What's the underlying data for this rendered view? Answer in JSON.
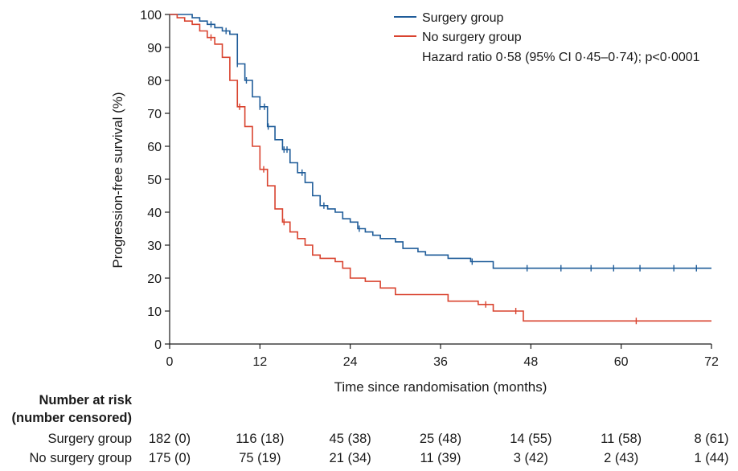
{
  "chart_data": {
    "type": "line",
    "xlabel": "Time since randomisation (months)",
    "ylabel": "Progression-free survival (%)",
    "xlim": [
      0,
      72
    ],
    "ylim": [
      0,
      100
    ],
    "x_ticks": [
      0,
      12,
      24,
      36,
      48,
      60,
      72
    ],
    "y_ticks": [
      0,
      10,
      20,
      30,
      40,
      50,
      60,
      70,
      80,
      90,
      100
    ],
    "grid": false,
    "legend_position": "top-right",
    "annotation": "Hazard ratio 0·58 (95% CI 0·45–0·74); p<0·0001",
    "series": [
      {
        "name": "Surgery group",
        "color": "#1f5c99",
        "step": true,
        "points": [
          [
            0,
            100
          ],
          [
            2,
            100
          ],
          [
            3,
            99
          ],
          [
            4,
            98
          ],
          [
            5,
            97
          ],
          [
            6,
            96
          ],
          [
            7,
            95
          ],
          [
            8,
            94
          ],
          [
            9,
            85
          ],
          [
            10,
            80
          ],
          [
            11,
            75
          ],
          [
            12,
            72
          ],
          [
            13,
            66
          ],
          [
            14,
            62
          ],
          [
            15,
            59
          ],
          [
            16,
            55
          ],
          [
            17,
            52
          ],
          [
            18,
            49
          ],
          [
            19,
            45
          ],
          [
            20,
            42
          ],
          [
            21,
            41
          ],
          [
            22,
            40
          ],
          [
            23,
            38
          ],
          [
            24,
            37
          ],
          [
            25,
            35
          ],
          [
            26,
            34
          ],
          [
            27,
            33
          ],
          [
            28,
            32
          ],
          [
            29,
            32
          ],
          [
            30,
            31
          ],
          [
            31,
            29
          ],
          [
            33,
            28
          ],
          [
            34,
            27
          ],
          [
            36,
            27
          ],
          [
            37,
            26
          ],
          [
            39,
            26
          ],
          [
            40,
            25
          ],
          [
            42,
            25
          ],
          [
            43,
            23
          ],
          [
            72,
            23
          ]
        ],
        "censor_x": [
          5.5,
          7.5,
          9,
          10.2,
          12,
          12.6,
          13.1,
          15.2,
          15.6,
          17.6,
          20.5,
          25.2,
          40.2,
          47.5,
          52,
          56,
          59,
          62.5,
          67,
          70
        ]
      },
      {
        "name": "No surgery group",
        "color": "#d9432f",
        "step": true,
        "points": [
          [
            0,
            100
          ],
          [
            1,
            99
          ],
          [
            2,
            98
          ],
          [
            3,
            97
          ],
          [
            4,
            95
          ],
          [
            5,
            93
          ],
          [
            6,
            91
          ],
          [
            7,
            87
          ],
          [
            8,
            80
          ],
          [
            9,
            72
          ],
          [
            10,
            66
          ],
          [
            11,
            60
          ],
          [
            12,
            53
          ],
          [
            13,
            48
          ],
          [
            14,
            41
          ],
          [
            15,
            37
          ],
          [
            16,
            34
          ],
          [
            17,
            32
          ],
          [
            18,
            30
          ],
          [
            19,
            27
          ],
          [
            20,
            26
          ],
          [
            22,
            25
          ],
          [
            23,
            23
          ],
          [
            24,
            20
          ],
          [
            26,
            19
          ],
          [
            28,
            17
          ],
          [
            30,
            15
          ],
          [
            31,
            15
          ],
          [
            36,
            15
          ],
          [
            37,
            13
          ],
          [
            41,
            12
          ],
          [
            43,
            10
          ],
          [
            47,
            7
          ],
          [
            72,
            7
          ]
        ],
        "censor_x": [
          5.5,
          9.3,
          12.5,
          15.2,
          42,
          46,
          62
        ]
      }
    ],
    "risk_table": {
      "header_line1": "Number at risk",
      "header_line2": "(number censored)",
      "rows": [
        {
          "label": "Surgery group",
          "values": [
            "182 (0)",
            "116 (18)",
            "45 (38)",
            "25 (48)",
            "14 (55)",
            "11 (58)",
            "8 (61)"
          ]
        },
        {
          "label": "No surgery group",
          "values": [
            "175 (0)",
            "75 (19)",
            "21 (34)",
            "11 (39)",
            "3 (42)",
            "2 (43)",
            "1 (44)"
          ]
        }
      ]
    }
  }
}
